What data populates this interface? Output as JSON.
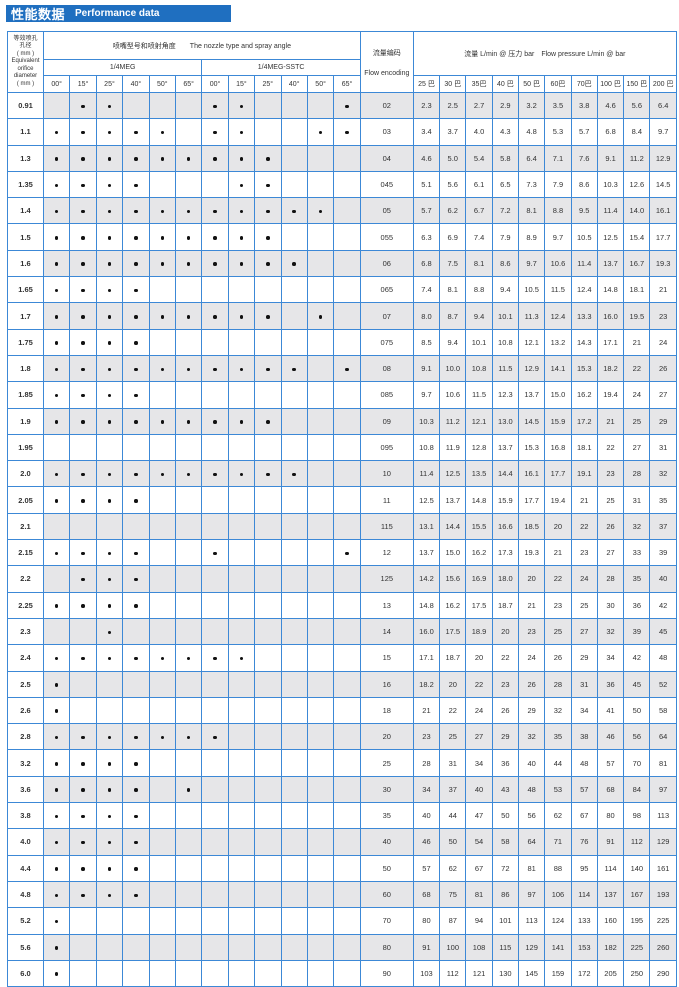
{
  "title": {
    "cn": "性能数据",
    "en": "Performance data"
  },
  "header": {
    "diameter": [
      "等效喷孔",
      "孔径",
      "( mm )",
      "Equivalent",
      "orifice",
      "diameter",
      "( mm )"
    ],
    "nozzle_type": "喷嘴型号和喷射角度　　The nozzle type and spray angle",
    "flow_code_cn": "流量编码",
    "flow_code_en": "Flow encoding",
    "flow": "流量 L/min @ 压力 bar　Flow pressure L/min @ bar",
    "series": [
      "1/4MEG",
      "1/4MEG-SSTC"
    ],
    "angles": [
      "00°",
      "15°",
      "25°",
      "40°",
      "50°",
      "65°",
      "00°",
      "15°",
      "25°",
      "40°",
      "50°",
      "65°"
    ],
    "pressures": [
      "25 巴",
      "30 巴",
      "35巴",
      "40 巴",
      "50 巴",
      "60巴",
      "70巴",
      "100 巴",
      "150 巴",
      "200 巴"
    ]
  },
  "rows": [
    {
      "d": "0.91",
      "dots": "011000110001",
      "code": "02",
      "flow": [
        "2.3",
        "2.5",
        "2.7",
        "2.9",
        "3.2",
        "3.5",
        "3.8",
        "4.6",
        "5.6",
        "6.4"
      ]
    },
    {
      "d": "1.1",
      "dots": "111110110011",
      "code": "03",
      "flow": [
        "3.4",
        "3.7",
        "4.0",
        "4.3",
        "4.8",
        "5.3",
        "5.7",
        "6.8",
        "8.4",
        "9.7"
      ]
    },
    {
      "d": "1.3",
      "dots": "111111111000",
      "code": "04",
      "flow": [
        "4.6",
        "5.0",
        "5.4",
        "5.8",
        "6.4",
        "7.1",
        "7.6",
        "9.1",
        "11.2",
        "12.9"
      ]
    },
    {
      "d": "1.35",
      "dots": "111100011000",
      "code": "045",
      "flow": [
        "5.1",
        "5.6",
        "6.1",
        "6.5",
        "7.3",
        "7.9",
        "8.6",
        "10.3",
        "12.6",
        "14.5"
      ]
    },
    {
      "d": "1.4",
      "dots": "111111111110",
      "code": "05",
      "flow": [
        "5.7",
        "6.2",
        "6.7",
        "7.2",
        "8.1",
        "8.8",
        "9.5",
        "11.4",
        "14.0",
        "16.1"
      ]
    },
    {
      "d": "1.5",
      "dots": "111111111000",
      "code": "055",
      "flow": [
        "6.3",
        "6.9",
        "7.4",
        "7.9",
        "8.9",
        "9.7",
        "10.5",
        "12.5",
        "15.4",
        "17.7"
      ]
    },
    {
      "d": "1.6",
      "dots": "111111111100",
      "code": "06",
      "flow": [
        "6.8",
        "7.5",
        "8.1",
        "8.6",
        "9.7",
        "10.6",
        "11.4",
        "13.7",
        "16.7",
        "19.3"
      ]
    },
    {
      "d": "1.65",
      "dots": "111100000000",
      "code": "065",
      "flow": [
        "7.4",
        "8.1",
        "8.8",
        "9.4",
        "10.5",
        "11.5",
        "12.4",
        "14.8",
        "18.1",
        "21"
      ]
    },
    {
      "d": "1.7",
      "dots": "111111111010",
      "code": "07",
      "flow": [
        "8.0",
        "8.7",
        "9.4",
        "10.1",
        "11.3",
        "12.4",
        "13.3",
        "16.0",
        "19.5",
        "23"
      ]
    },
    {
      "d": "1.75",
      "dots": "111100000000",
      "code": "075",
      "flow": [
        "8.5",
        "9.4",
        "10.1",
        "10.8",
        "12.1",
        "13.2",
        "14.3",
        "17.1",
        "21",
        "24"
      ]
    },
    {
      "d": "1.8",
      "dots": "111111111101",
      "code": "08",
      "flow": [
        "9.1",
        "10.0",
        "10.8",
        "11.5",
        "12.9",
        "14.1",
        "15.3",
        "18.2",
        "22",
        "26"
      ]
    },
    {
      "d": "1.85",
      "dots": "111100000000",
      "code": "085",
      "flow": [
        "9.7",
        "10.6",
        "11.5",
        "12.3",
        "13.7",
        "15.0",
        "16.2",
        "19.4",
        "24",
        "27"
      ]
    },
    {
      "d": "1.9",
      "dots": "111111111000",
      "code": "09",
      "flow": [
        "10.3",
        "11.2",
        "12.1",
        "13.0",
        "14.5",
        "15.9",
        "17.2",
        "21",
        "25",
        "29"
      ]
    },
    {
      "d": "1.95",
      "dots": "000000000000",
      "code": "095",
      "flow": [
        "10.8",
        "11.9",
        "12.8",
        "13.7",
        "15.3",
        "16.8",
        "18.1",
        "22",
        "27",
        "31"
      ]
    },
    {
      "d": "2.0",
      "dots": "111111111100",
      "code": "10",
      "flow": [
        "11.4",
        "12.5",
        "13.5",
        "14.4",
        "16.1",
        "17.7",
        "19.1",
        "23",
        "28",
        "32"
      ]
    },
    {
      "d": "2.05",
      "dots": "111100000000",
      "code": "11",
      "flow": [
        "12.5",
        "13.7",
        "14.8",
        "15.9",
        "17.7",
        "19.4",
        "21",
        "25",
        "31",
        "35"
      ]
    },
    {
      "d": "2.1",
      "dots": "000000000000",
      "code": "115",
      "flow": [
        "13.1",
        "14.4",
        "15.5",
        "16.6",
        "18.5",
        "20",
        "22",
        "26",
        "32",
        "37"
      ]
    },
    {
      "d": "2.15",
      "dots": "111100100001",
      "code": "12",
      "flow": [
        "13.7",
        "15.0",
        "16.2",
        "17.3",
        "19.3",
        "21",
        "23",
        "27",
        "33",
        "39"
      ]
    },
    {
      "d": "2.2",
      "dots": "011100000000",
      "code": "125",
      "flow": [
        "14.2",
        "15.6",
        "16.9",
        "18.0",
        "20",
        "22",
        "24",
        "28",
        "35",
        "40"
      ]
    },
    {
      "d": "2.25",
      "dots": "111100000000",
      "code": "13",
      "flow": [
        "14.8",
        "16.2",
        "17.5",
        "18.7",
        "21",
        "23",
        "25",
        "30",
        "36",
        "42"
      ]
    },
    {
      "d": "2.3",
      "dots": "001000000000",
      "code": "14",
      "flow": [
        "16.0",
        "17.5",
        "18.9",
        "20",
        "23",
        "25",
        "27",
        "32",
        "39",
        "45"
      ]
    },
    {
      "d": "2.4",
      "dots": "111111110000",
      "code": "15",
      "flow": [
        "17.1",
        "18.7",
        "20",
        "22",
        "24",
        "26",
        "29",
        "34",
        "42",
        "48"
      ]
    },
    {
      "d": "2.5",
      "dots": "100000000000",
      "code": "16",
      "flow": [
        "18.2",
        "20",
        "22",
        "23",
        "26",
        "28",
        "31",
        "36",
        "45",
        "52"
      ]
    },
    {
      "d": "2.6",
      "dots": "100000000000",
      "code": "18",
      "flow": [
        "21",
        "22",
        "24",
        "26",
        "29",
        "32",
        "34",
        "41",
        "50",
        "58"
      ]
    },
    {
      "d": "2.8",
      "dots": "111111100000",
      "code": "20",
      "flow": [
        "23",
        "25",
        "27",
        "29",
        "32",
        "35",
        "38",
        "46",
        "56",
        "64"
      ]
    },
    {
      "d": "3.2",
      "dots": "111100000000",
      "code": "25",
      "flow": [
        "28",
        "31",
        "34",
        "36",
        "40",
        "44",
        "48",
        "57",
        "70",
        "81"
      ]
    },
    {
      "d": "3.6",
      "dots": "111101000000",
      "code": "30",
      "flow": [
        "34",
        "37",
        "40",
        "43",
        "48",
        "53",
        "57",
        "68",
        "84",
        "97"
      ]
    },
    {
      "d": "3.8",
      "dots": "111100000000",
      "code": "35",
      "flow": [
        "40",
        "44",
        "47",
        "50",
        "56",
        "62",
        "67",
        "80",
        "98",
        "113"
      ]
    },
    {
      "d": "4.0",
      "dots": "111100000000",
      "code": "40",
      "flow": [
        "46",
        "50",
        "54",
        "58",
        "64",
        "71",
        "76",
        "91",
        "112",
        "129"
      ]
    },
    {
      "d": "4.4",
      "dots": "111100000000",
      "code": "50",
      "flow": [
        "57",
        "62",
        "67",
        "72",
        "81",
        "88",
        "95",
        "114",
        "140",
        "161"
      ]
    },
    {
      "d": "4.8",
      "dots": "111100000000",
      "code": "60",
      "flow": [
        "68",
        "75",
        "81",
        "86",
        "97",
        "106",
        "114",
        "137",
        "167",
        "193"
      ]
    },
    {
      "d": "5.2",
      "dots": "100000000000",
      "code": "70",
      "flow": [
        "80",
        "87",
        "94",
        "101",
        "113",
        "124",
        "133",
        "160",
        "195",
        "225"
      ]
    },
    {
      "d": "5.6",
      "dots": "100000000000",
      "code": "80",
      "flow": [
        "91",
        "100",
        "108",
        "115",
        "129",
        "141",
        "153",
        "182",
        "225",
        "260"
      ]
    },
    {
      "d": "6.0",
      "dots": "100000000000",
      "code": "90",
      "flow": [
        "103",
        "112",
        "121",
        "130",
        "145",
        "159",
        "172",
        "205",
        "250",
        "290"
      ]
    }
  ],
  "colors": {
    "title_bg": "#1f6fc0",
    "border": "#3c88d6",
    "shade": "#e6e6e8"
  }
}
